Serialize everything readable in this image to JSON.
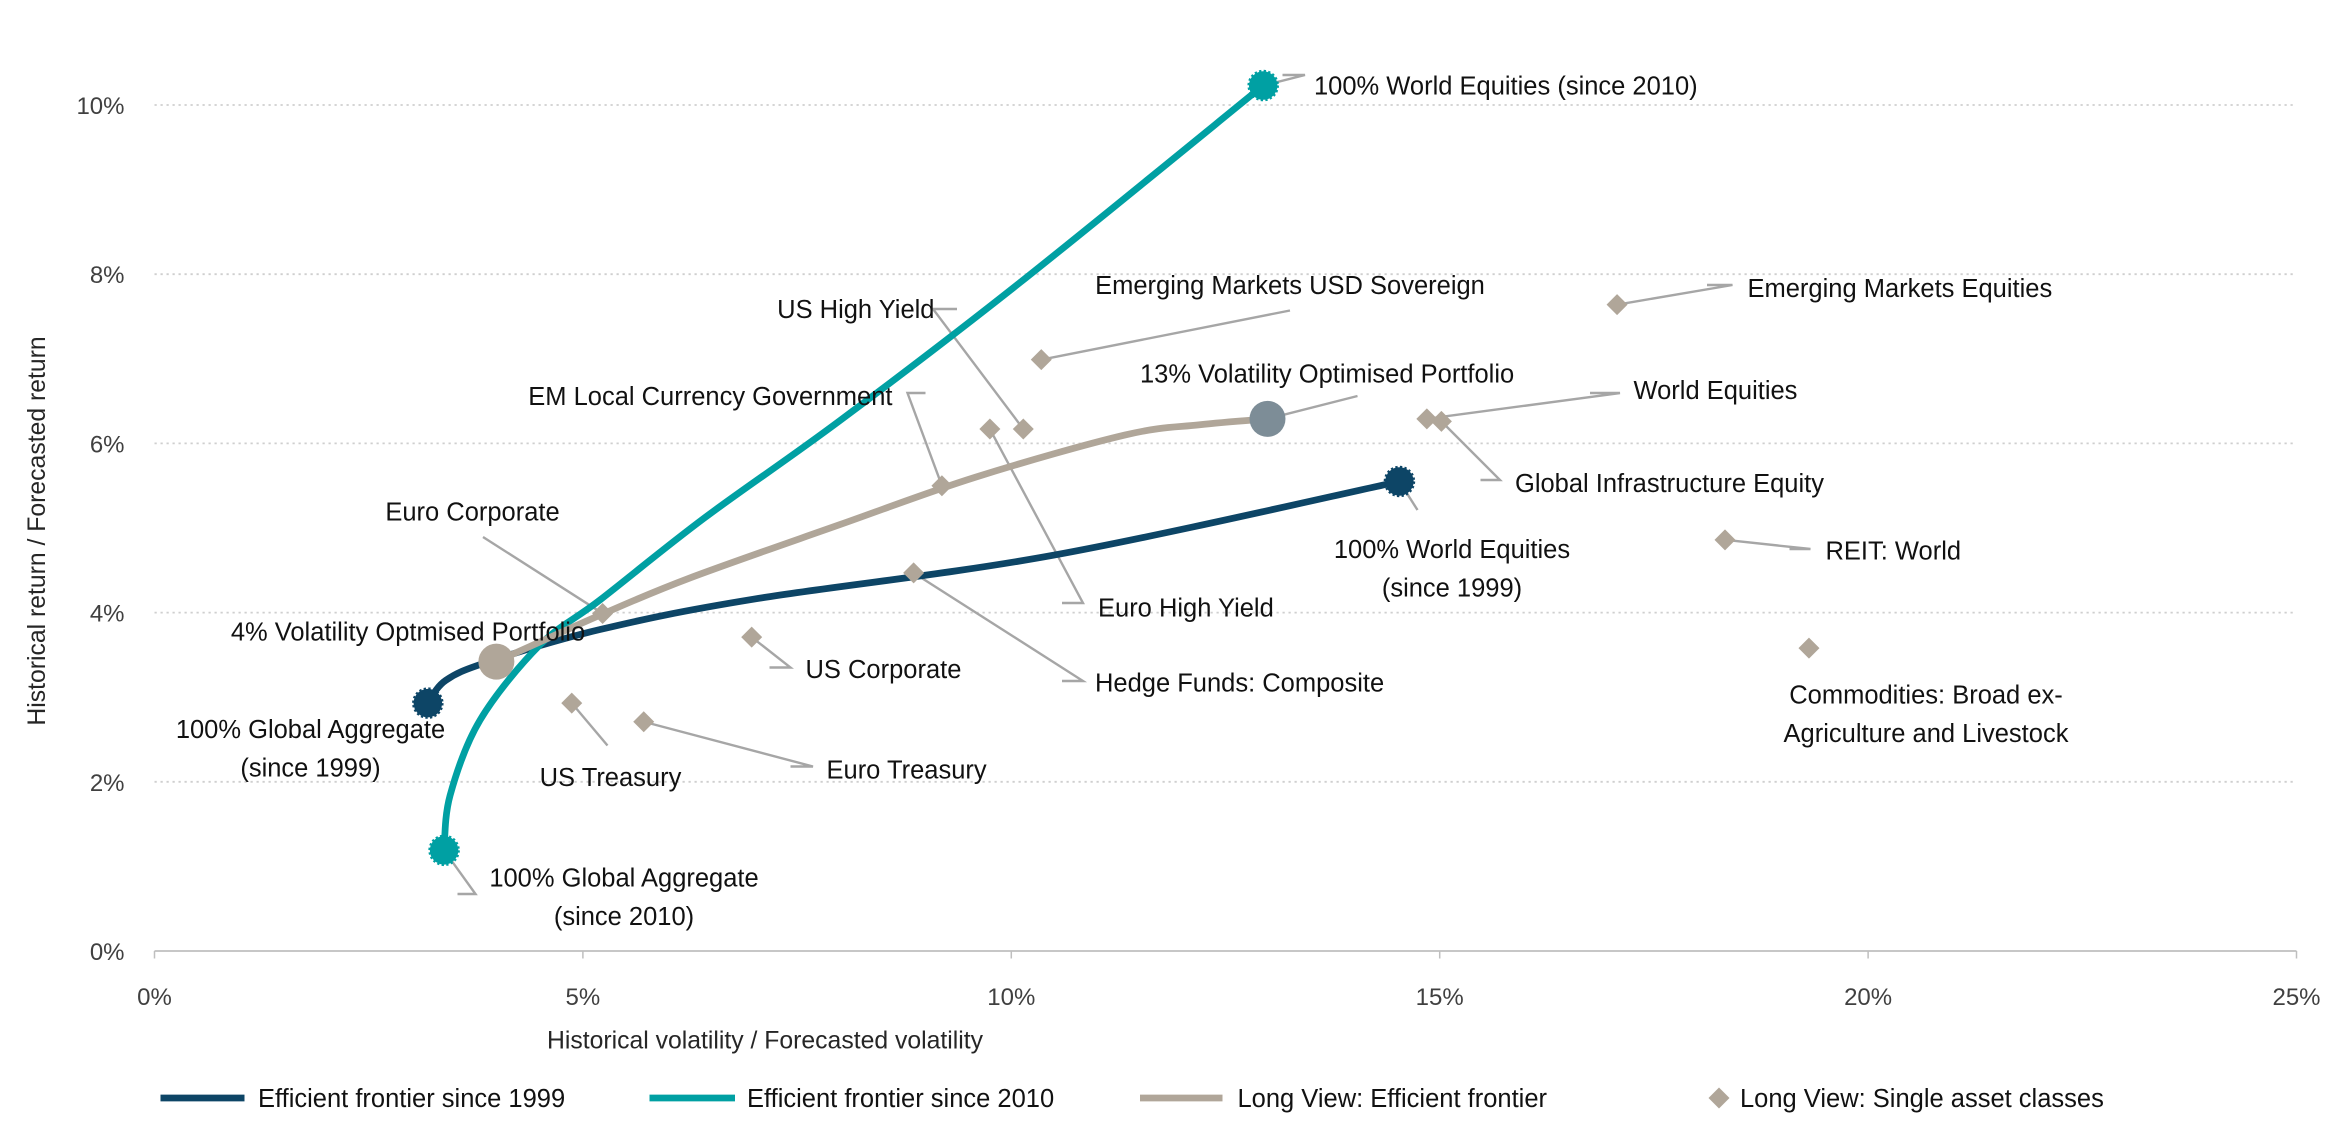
{
  "chart_data": {
    "type": "scatter",
    "xlabel": "Historical volatility / Forecasted volatility",
    "ylabel": "Historical return / Forecasted return",
    "xlim": [
      0,
      25
    ],
    "ylim": [
      0,
      10
    ],
    "x_ticks": [
      "0%",
      "5%",
      "10%",
      "15%",
      "20%",
      "25%"
    ],
    "y_ticks": [
      "0%",
      "2%",
      "4%",
      "6%",
      "8%",
      "10%"
    ],
    "grid": "horizontal dotted",
    "legend_placement": "bottom",
    "colors": {
      "frontier_1999": "#0d4566",
      "frontier_2010": "#00a0a3",
      "long_view": "#b0a699",
      "opt_13": "#7d8d97",
      "text_1999": "#1f5f86"
    },
    "series": [
      {
        "name": "Efficient frontier since 1999",
        "kind": "line",
        "color": "#0d4566",
        "points": [
          [
            3.19,
            2.93
          ],
          [
            3.4,
            3.2
          ],
          [
            3.9,
            3.42
          ],
          [
            5.2,
            3.8
          ],
          [
            7.0,
            4.16
          ],
          [
            10.5,
            4.68
          ],
          [
            14.53,
            5.55
          ]
        ]
      },
      {
        "name": "Efficient frontier since 2010",
        "kind": "line",
        "color": "#00a0a3",
        "points": [
          [
            3.38,
            1.19
          ],
          [
            3.45,
            1.84
          ],
          [
            3.8,
            2.73
          ],
          [
            4.5,
            3.62
          ],
          [
            5.2,
            4.15
          ],
          [
            6.42,
            5.12
          ],
          [
            8.0,
            6.27
          ],
          [
            10.1,
            7.9
          ],
          [
            12.94,
            10.23
          ]
        ]
      },
      {
        "name": "Long View: Efficient frontier",
        "kind": "line",
        "color": "#b0a699",
        "points": [
          [
            3.99,
            3.42
          ],
          [
            5.2,
            3.97
          ],
          [
            6.25,
            4.41
          ],
          [
            8.0,
            5.04
          ],
          [
            9.58,
            5.6
          ],
          [
            11.33,
            6.1
          ],
          [
            12.2,
            6.22
          ],
          [
            12.99,
            6.29
          ]
        ]
      },
      {
        "name": "Long View: Single asset classes",
        "kind": "scatter",
        "color": "#b0a699",
        "points": [
          {
            "label": [
              "Emerging Markets Equities"
            ],
            "x": 17.07,
            "y": 7.64
          },
          {
            "label": [
              "World Equities"
            ],
            "x": 14.85,
            "y": 6.29
          },
          {
            "label": [
              "Global Infrastructure Equity"
            ],
            "x": 15.02,
            "y": 6.26
          },
          {
            "label": [
              "REIT: World"
            ],
            "x": 18.33,
            "y": 4.86
          },
          {
            "label": [
              "Commodities: Broad ex-",
              "Agriculture and Livestock"
            ],
            "x": 19.31,
            "y": 3.58
          },
          {
            "label": [
              "Emerging Markets USD Sovereign"
            ],
            "x": 10.35,
            "y": 6.99
          },
          {
            "label": [
              "US High Yield"
            ],
            "x": 10.14,
            "y": 6.17
          },
          {
            "label": [
              "Euro High Yield"
            ],
            "x": 9.75,
            "y": 6.17
          },
          {
            "label": [
              "EM Local Currency Government"
            ],
            "x": 9.19,
            "y": 5.5
          },
          {
            "label": [
              "Euro Corporate"
            ],
            "x": 5.23,
            "y": 3.99
          },
          {
            "label": [
              "Hedge Funds: Composite"
            ],
            "x": 8.86,
            "y": 4.47
          },
          {
            "label": [
              "US Corporate"
            ],
            "x": 6.97,
            "y": 3.71
          },
          {
            "label": [
              "US Treasury"
            ],
            "x": 4.87,
            "y": 2.93
          },
          {
            "label": [
              "Euro Treasury"
            ],
            "x": 5.71,
            "y": 2.71
          }
        ]
      }
    ],
    "key_points": [
      {
        "label": [
          "100% World Equities (since 2010)"
        ],
        "x": 12.94,
        "y": 10.23,
        "color": "#00a0a3",
        "marker": "endpoint"
      },
      {
        "label": [
          "100% Global Aggregate",
          "(since 2010)"
        ],
        "x": 3.38,
        "y": 1.19,
        "color": "#00a0a3",
        "marker": "endpoint"
      },
      {
        "label": [
          "100% World Equities",
          "(since 1999)"
        ],
        "x": 14.53,
        "y": 5.55,
        "color": "#0d4566",
        "marker": "endpoint"
      },
      {
        "label": [
          "100% Global Aggregate",
          "(since 1999)"
        ],
        "x": 3.19,
        "y": 2.93,
        "color": "#0d4566",
        "marker": "endpoint"
      },
      {
        "label": [
          "13% Volatility Optimised Portfolio"
        ],
        "x": 12.99,
        "y": 6.29,
        "color": "#7d8d97",
        "marker": "portfolio"
      },
      {
        "label": [
          "4% Volatility Optmised Portfolio"
        ],
        "x": 3.99,
        "y": 3.42,
        "color": "#b0a699",
        "marker": "portfolio"
      }
    ]
  }
}
